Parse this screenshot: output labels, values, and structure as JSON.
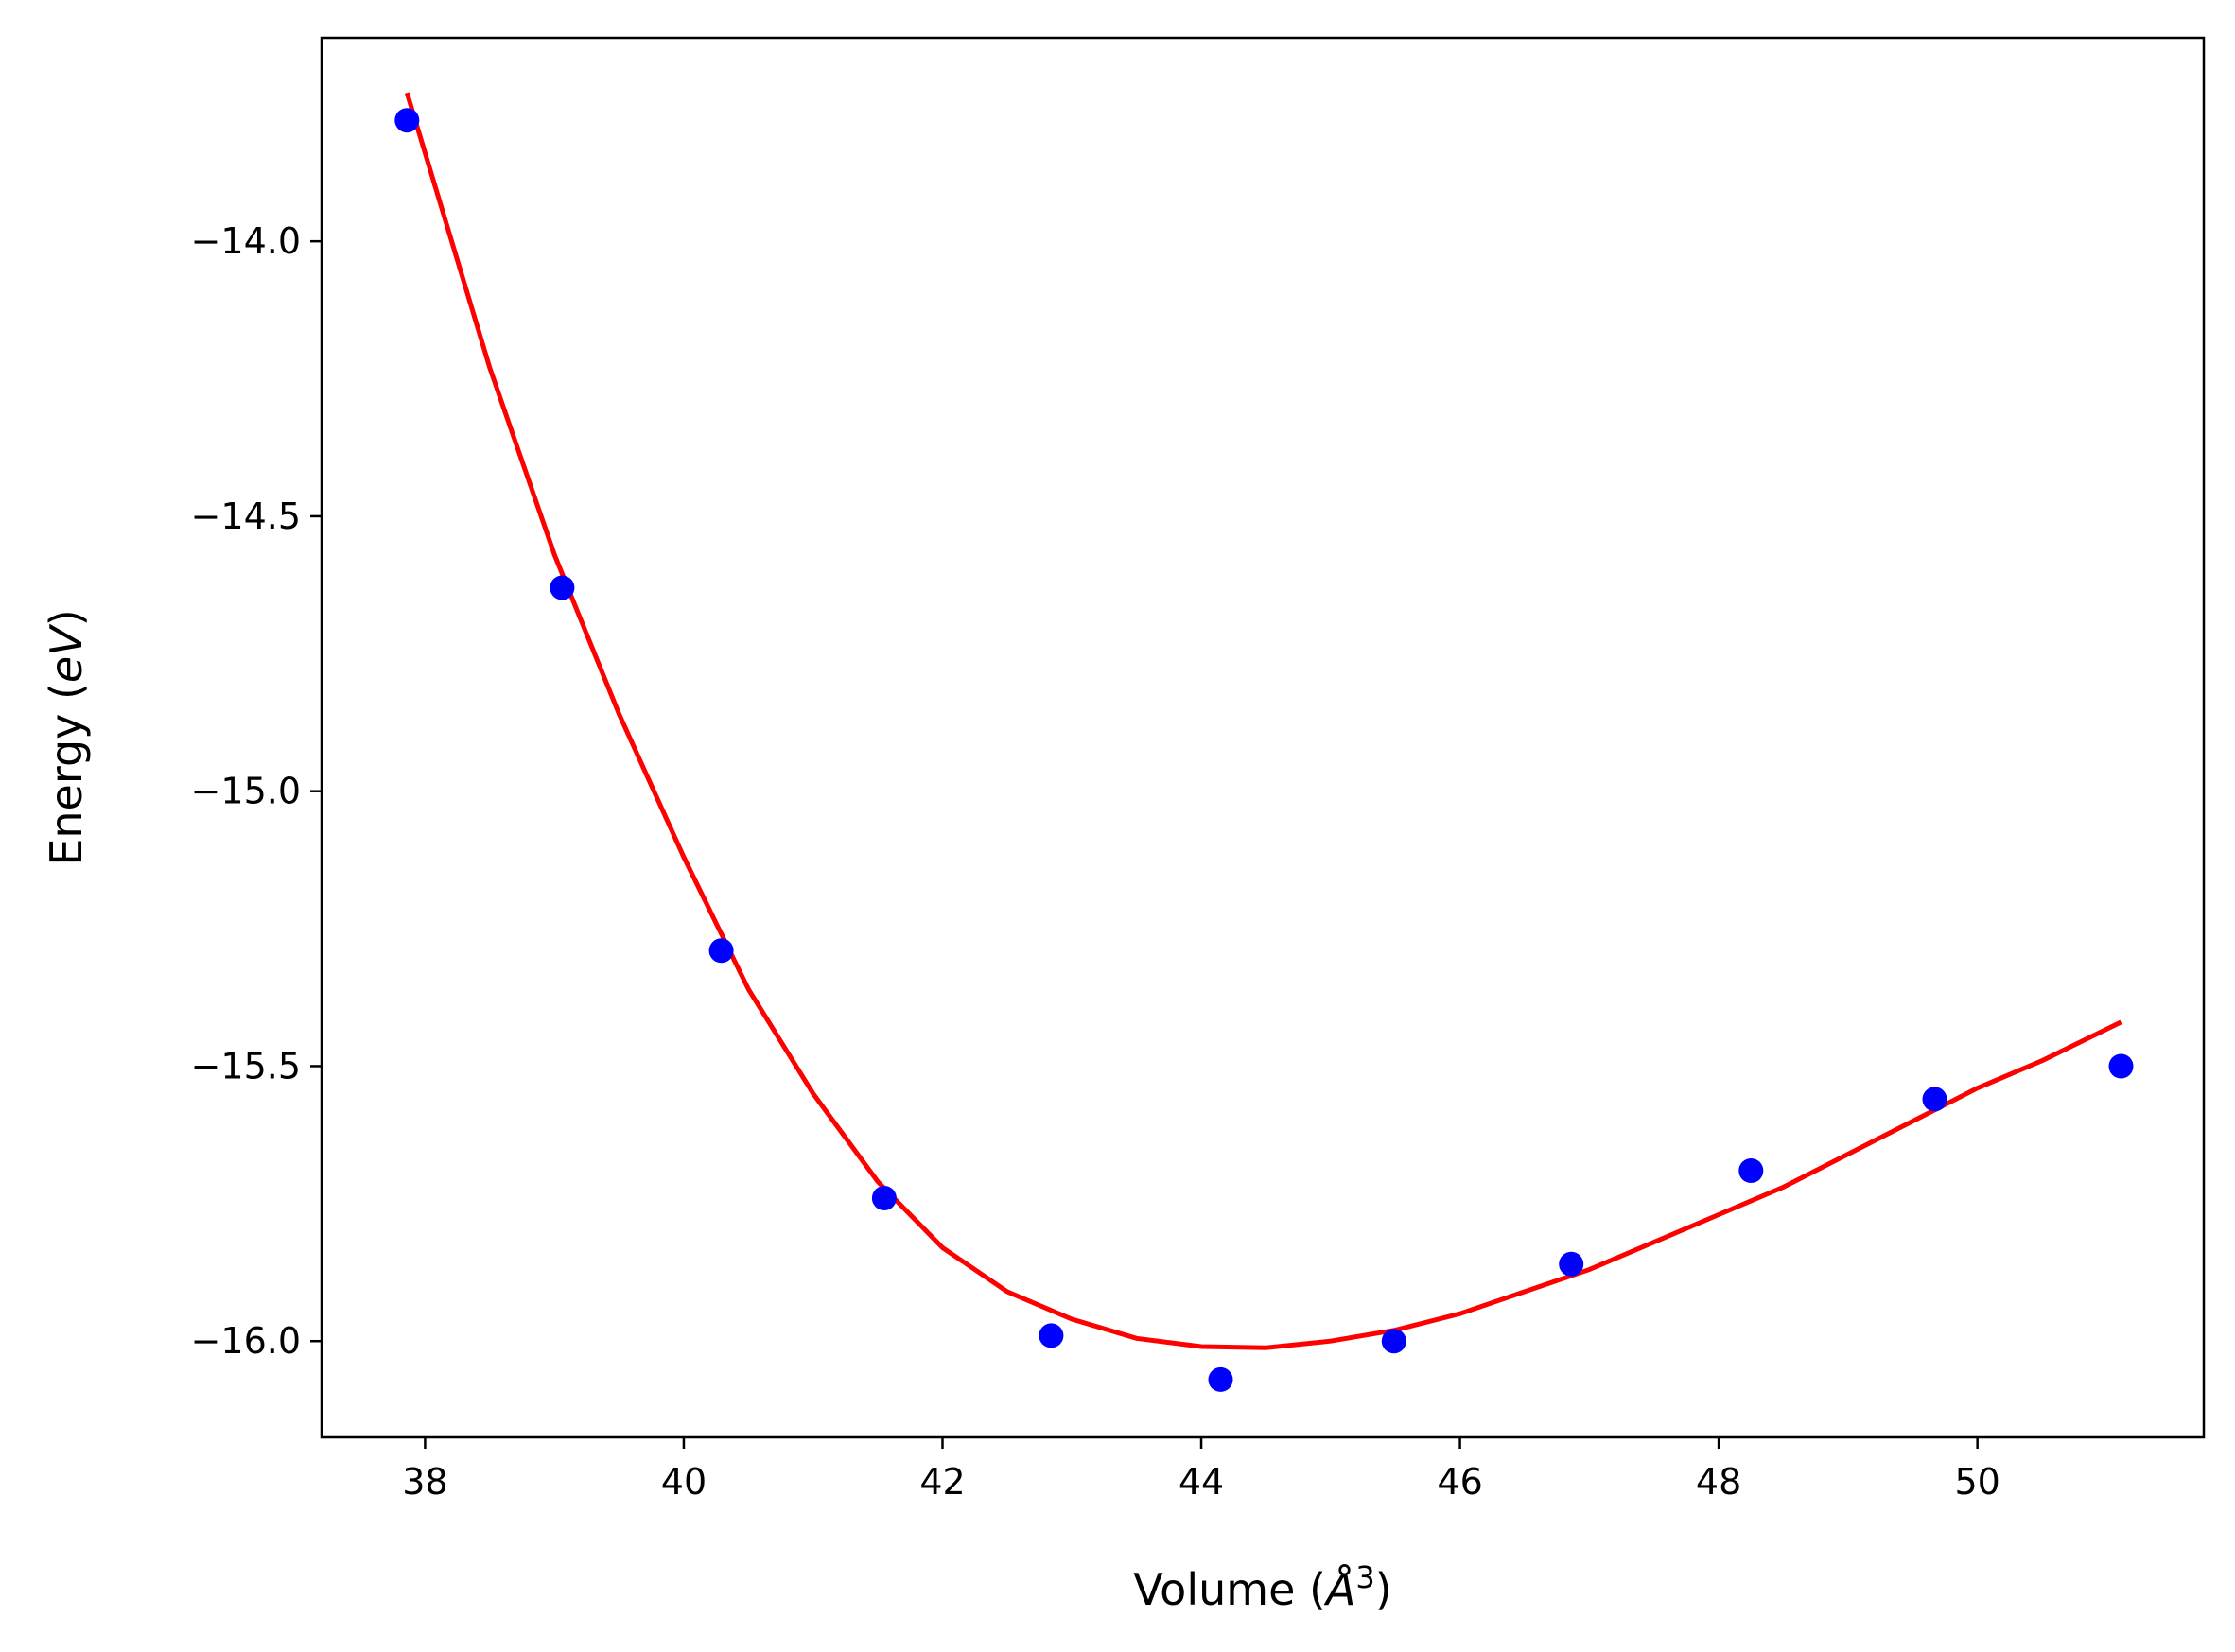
{
  "chart_data": {
    "type": "scatter",
    "xlabel_main": "Volume (",
    "xlabel_unit": "Å",
    "xlabel_sup": "3",
    "xlabel_end": ")",
    "ylabel_main": "Energy (",
    "ylabel_unit": "eV",
    "ylabel_end": ")",
    "xlim": [
      37.2,
      51.75
    ],
    "ylim": [
      -16.175,
      -13.63
    ],
    "grid": false,
    "x_ticks": [
      38,
      40,
      42,
      44,
      46,
      48,
      50
    ],
    "x_tick_labels": [
      "38",
      "40",
      "42",
      "44",
      "46",
      "48",
      "50"
    ],
    "y_ticks": [
      -14.0,
      -14.5,
      -15.0,
      -15.5,
      -16.0
    ],
    "y_tick_labels": [
      "−14.0",
      "−14.5",
      "−15.0",
      "−15.5",
      "−16.0"
    ],
    "series": [
      {
        "kind": "points",
        "color": "#0000ff",
        "x": [
          37.86,
          39.06,
          40.29,
          41.55,
          42.84,
          44.15,
          45.49,
          46.86,
          48.25,
          49.67,
          51.11
        ],
        "y": [
          -13.78,
          -14.63,
          -15.29,
          -15.74,
          -15.99,
          -16.07,
          -16.0,
          -15.86,
          -15.69,
          -15.56,
          -15.5
        ]
      },
      {
        "kind": "fit-curve",
        "color": "#ff0000",
        "x": [
          37.86,
          38.5,
          39.0,
          39.5,
          40.0,
          40.5,
          41.0,
          41.5,
          42.0,
          42.5,
          43.0,
          43.5,
          44.0,
          44.5,
          45.0,
          45.5,
          46.0,
          46.5,
          47.0,
          47.5,
          48.0,
          48.5,
          49.0,
          49.5,
          50.0,
          50.5,
          51.11
        ],
        "y": [
          -13.73,
          -14.23,
          -14.57,
          -14.86,
          -15.12,
          -15.36,
          -15.55,
          -15.71,
          -15.83,
          -15.91,
          -15.96,
          -15.995,
          -16.01,
          -16.012,
          -16.0,
          -15.98,
          -15.95,
          -15.91,
          -15.87,
          -15.82,
          -15.77,
          -15.72,
          -15.66,
          -15.6,
          -15.54,
          -15.49,
          -15.42
        ]
      }
    ]
  }
}
